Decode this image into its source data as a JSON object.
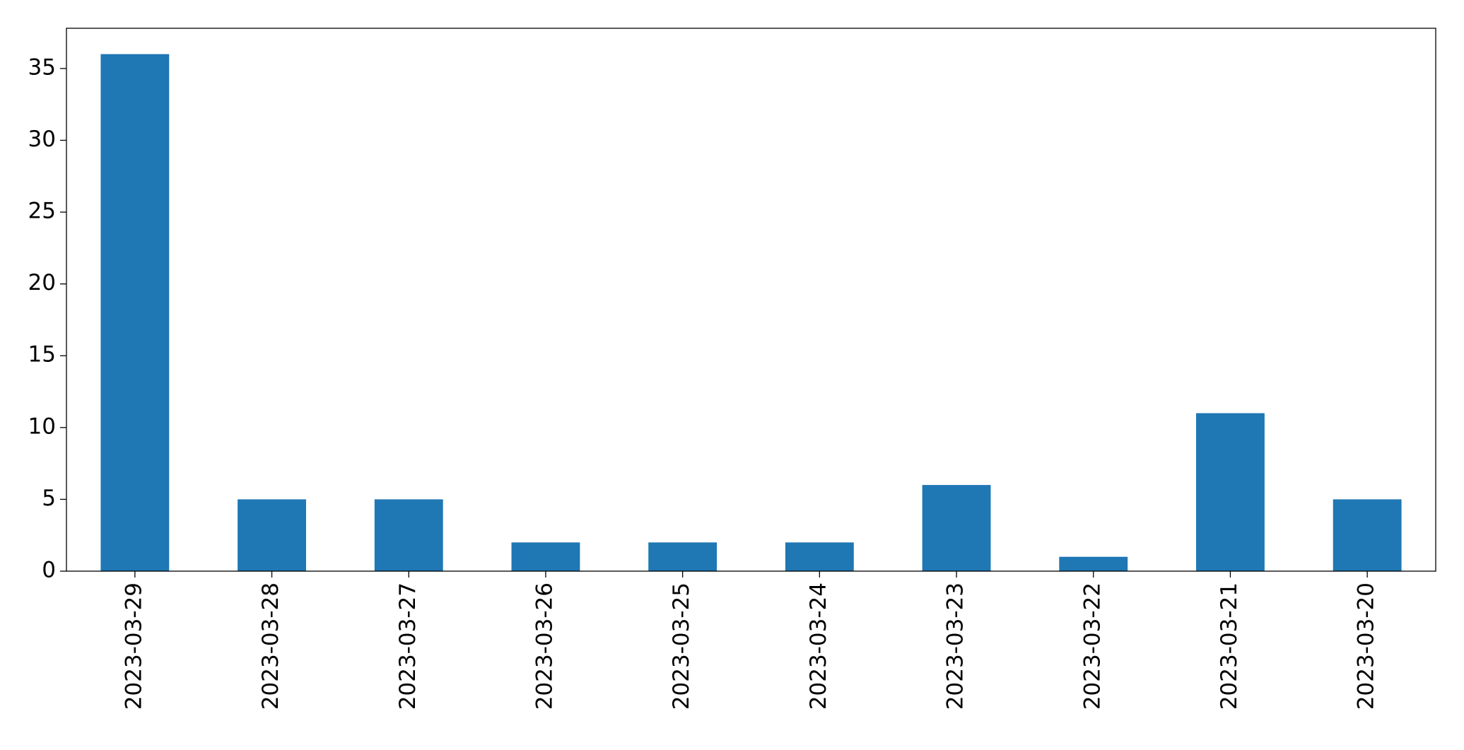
{
  "chart_data": {
    "type": "bar",
    "categories": [
      "2023-03-29",
      "2023-03-28",
      "2023-03-27",
      "2023-03-26",
      "2023-03-25",
      "2023-03-24",
      "2023-03-23",
      "2023-03-22",
      "2023-03-21",
      "2023-03-20"
    ],
    "values": [
      36,
      5,
      5,
      2,
      2,
      2,
      6,
      1,
      11,
      5
    ],
    "color": "#1f77b4",
    "ylim": [
      0,
      37.8
    ],
    "yticks": [
      0,
      5,
      10,
      15,
      20,
      25,
      30,
      35
    ],
    "grid": false
  }
}
